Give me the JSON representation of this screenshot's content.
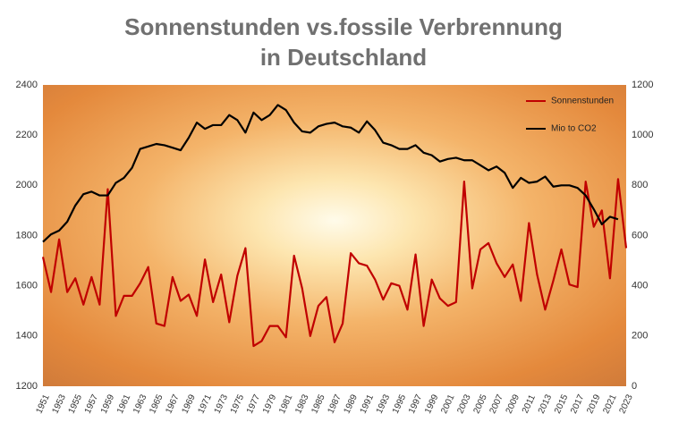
{
  "chart_data": {
    "type": "line",
    "title": [
      "Sonnenstunden vs.fossile Verbrennung",
      "in Deutschland"
    ],
    "categories": [
      "1951",
      null,
      "1953",
      null,
      "1955",
      null,
      "1957",
      null,
      "1959",
      null,
      "1961",
      null,
      "1963",
      null,
      "1965",
      null,
      "1967",
      null,
      "1969",
      null,
      "1971",
      null,
      "1973",
      null,
      "1975",
      null,
      "1977",
      null,
      "1979",
      null,
      "1981",
      null,
      "1983",
      null,
      "1985",
      null,
      "1987",
      null,
      "1989",
      null,
      "1991",
      null,
      "1993",
      null,
      "1995",
      null,
      "1997",
      null,
      "1999",
      null,
      "2001",
      null,
      "2003",
      null,
      "2005",
      null,
      "2007",
      null,
      "2009",
      null,
      "2011",
      null,
      "2013",
      null,
      "2015",
      null,
      "2017",
      null,
      "2019",
      null,
      "2021",
      null,
      "2023"
    ],
    "series": [
      {
        "name": "Sonnenstunden",
        "color": "#c00000",
        "axis": "y",
        "values": [
          1715,
          1575,
          1785,
          1575,
          1630,
          1525,
          1635,
          1525,
          1985,
          1480,
          1560,
          1560,
          1610,
          1675,
          1450,
          1440,
          1635,
          1540,
          1565,
          1480,
          1705,
          1535,
          1645,
          1455,
          1640,
          1750,
          1360,
          1380,
          1440,
          1440,
          1395,
          1720,
          1590,
          1400,
          1520,
          1555,
          1375,
          1450,
          1730,
          1690,
          1680,
          1625,
          1545,
          1610,
          1600,
          1505,
          1725,
          1440,
          1625,
          1550,
          1520,
          1535,
          2015,
          1590,
          1745,
          1770,
          1690,
          1635,
          1685,
          1540,
          1850,
          1645,
          1505,
          1620,
          1745,
          1605,
          1595,
          2015,
          1835,
          1900,
          1630,
          2025,
          1750
        ]
      },
      {
        "name": "Mio to CO2",
        "color": "#000000",
        "axis": "y2",
        "values": [
          575,
          605,
          620,
          655,
          720,
          765,
          775,
          760,
          760,
          810,
          830,
          870,
          945,
          955,
          965,
          960,
          950,
          940,
          990,
          1050,
          1025,
          1040,
          1040,
          1080,
          1060,
          1010,
          1090,
          1060,
          1080,
          1120,
          1100,
          1050,
          1015,
          1010,
          1035,
          1045,
          1050,
          1035,
          1030,
          1010,
          1055,
          1020,
          970,
          960,
          945,
          945,
          960,
          930,
          920,
          895,
          905,
          910,
          900,
          900,
          880,
          860,
          875,
          850,
          790,
          830,
          810,
          815,
          835,
          795,
          800,
          800,
          790,
          760,
          705,
          645,
          675,
          665,
          null
        ]
      }
    ],
    "ylim": [
      1200,
      2400
    ],
    "yticks": [
      1200,
      1400,
      1600,
      1800,
      2000,
      2200,
      2400
    ],
    "y2lim": [
      0,
      1200
    ],
    "y2ticks": [
      0,
      200,
      400,
      600,
      800,
      1000,
      1200
    ],
    "legend": "upper right"
  }
}
